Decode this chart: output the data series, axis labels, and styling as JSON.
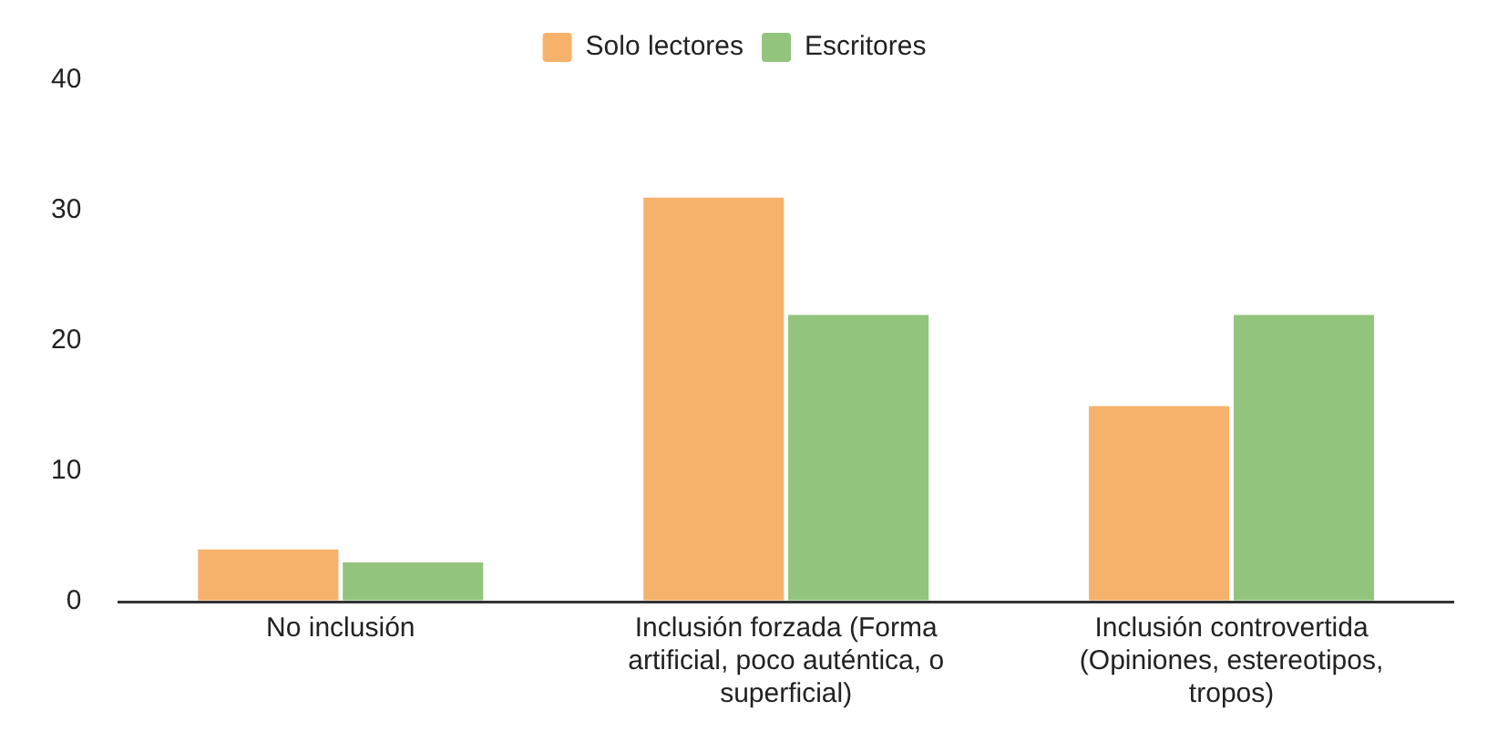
{
  "chart_data": {
    "type": "bar",
    "categories": [
      "No inclusión",
      "Inclusión forzada (Forma artificial, poco auténtica, o superficial)",
      "Inclusión controvertida (Opiniones, estereotipos, tropos)"
    ],
    "series": [
      {
        "name": "Solo lectores",
        "color": "#f6b26b",
        "values": [
          4,
          31,
          15
        ]
      },
      {
        "name": "Escritores",
        "color": "#93c47d",
        "values": [
          3,
          22,
          22
        ]
      }
    ],
    "ylim": [
      0,
      40
    ],
    "yticks": [
      0,
      10,
      20,
      30,
      40
    ],
    "grid": false,
    "legend": "top"
  }
}
